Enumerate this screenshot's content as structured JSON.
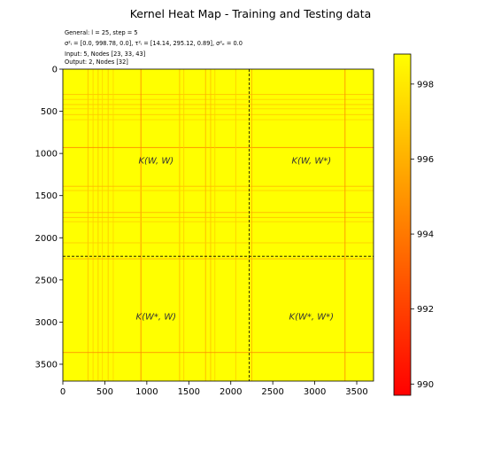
{
  "chart_data": {
    "type": "heatmap",
    "title": "Kernel Heat Map - Training and Testing data",
    "info_lines": [
      "General: l = 25, step = 5",
      "σ²ₗ = [0.0, 998.78, 0.0], τ²ₗ = [14.14, 295.12, 0.89], σ²ₑ = 0.0",
      "Input: 5, Nodes [23, 33, 43]",
      "Output: 2, Nodes [32]"
    ],
    "xlim": [
      0,
      3700
    ],
    "ylim": [
      3700,
      0
    ],
    "x_ticks": [
      0,
      500,
      1000,
      1500,
      2000,
      2500,
      3000,
      3500
    ],
    "y_ticks": [
      0,
      500,
      1000,
      1500,
      2000,
      2500,
      3000,
      3500
    ],
    "split_index": 2220,
    "colorbar": {
      "range": [
        989.7,
        998.8
      ],
      "ticks": [
        990,
        992,
        994,
        996,
        998
      ],
      "colormap": "autumn",
      "low_color": "#ff0000",
      "high_color": "#ffff00"
    },
    "quadrant_labels": [
      {
        "text": "K(W, W)",
        "x": 1110,
        "y": 1120
      },
      {
        "text": "K(W, W*)",
        "x": 2960,
        "y": 1120
      },
      {
        "text": "K(W*, W)",
        "x": 1110,
        "y": 2970
      },
      {
        "text": "K(W*, W*)",
        "x": 2960,
        "y": 2970
      }
    ],
    "dip_bands": [
      {
        "pos": 300,
        "min": 996.5
      },
      {
        "pos": 360,
        "min": 997.2
      },
      {
        "pos": 420,
        "min": 996.8
      },
      {
        "pos": 470,
        "min": 997.3
      },
      {
        "pos": 540,
        "min": 996.9
      },
      {
        "pos": 600,
        "min": 997.4
      },
      {
        "pos": 930,
        "min": 994.5
      },
      {
        "pos": 1390,
        "min": 996.3
      },
      {
        "pos": 1440,
        "min": 997.1
      },
      {
        "pos": 1700,
        "min": 996.0
      },
      {
        "pos": 1760,
        "min": 996.5
      },
      {
        "pos": 1810,
        "min": 997.2
      },
      {
        "pos": 2060,
        "min": 997.0
      },
      {
        "pos": 2250,
        "min": 996.0
      },
      {
        "pos": 3360,
        "min": 994.8
      }
    ]
  }
}
